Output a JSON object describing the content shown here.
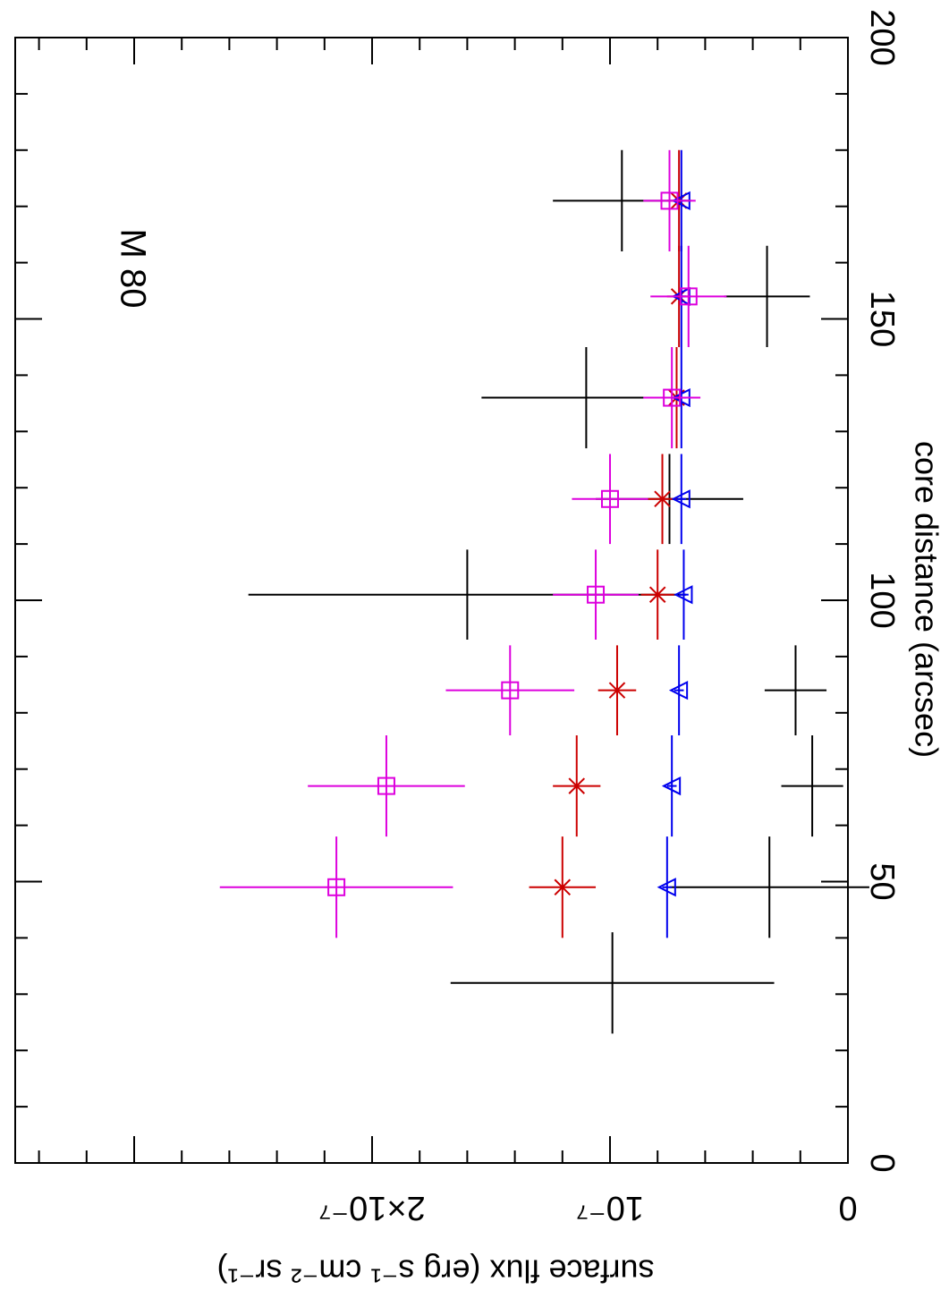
{
  "chart_data": {
    "type": "scatter",
    "orientation": "rotated-90-clockwise",
    "annotation": "M 80",
    "xlabel": "core distance (arcsec)",
    "ylabel": "surface flux (erg s⁻¹ cm⁻² sr⁻¹)",
    "xlim": [
      0,
      200
    ],
    "ylim": [
      0,
      3.5e-07
    ],
    "x_ticks": [
      0,
      50,
      100,
      150,
      200
    ],
    "x_tick_labels": [
      "0",
      "50",
      "100",
      "150",
      "200"
    ],
    "y_ticks": [
      0,
      1e-07,
      2e-07
    ],
    "y_tick_labels": [
      "0",
      "10⁻⁷",
      "2×10⁻⁷"
    ],
    "series": [
      {
        "name": "black",
        "color": "#000000",
        "marker": "none",
        "points": [
          {
            "x": 32,
            "xerr": 9,
            "y": 9.9e-08,
            "yerr": 6.8e-08
          },
          {
            "x": 49,
            "xerr": 9,
            "y": 3.3e-08,
            "yerr": 4.2e-08
          },
          {
            "x": 67,
            "xerr": 9,
            "y": 1.5e-08,
            "yerr": 1.3e-08
          },
          {
            "x": 84,
            "xerr": 8,
            "y": 2.2e-08,
            "yerr": 1.3e-08
          },
          {
            "x": 101,
            "xerr": 8,
            "y": 1.6e-07,
            "yerr": 9.2e-08
          },
          {
            "x": 118,
            "xerr": 8,
            "y": 7.5e-08,
            "yerr": 3.1e-08
          },
          {
            "x": 136,
            "xerr": 9,
            "y": 1.1e-07,
            "yerr": 4.4e-08
          },
          {
            "x": 154,
            "xerr": 9,
            "y": 3.4e-08,
            "yerr": 1.8e-08
          },
          {
            "x": 171,
            "xerr": 9,
            "y": 9.5e-08,
            "yerr": 2.9e-08
          }
        ]
      },
      {
        "name": "red",
        "color": "#cc0000",
        "marker": "star",
        "points": [
          {
            "x": 49,
            "xerr": 9,
            "y": 1.2e-07,
            "yerr": 1.4e-08
          },
          {
            "x": 67,
            "xerr": 9,
            "y": 1.14e-07,
            "yerr": 1e-08
          },
          {
            "x": 84,
            "xerr": 8,
            "y": 9.7e-08,
            "yerr": 8e-09
          },
          {
            "x": 101,
            "xerr": 8,
            "y": 8e-08,
            "yerr": 7e-09
          },
          {
            "x": 118,
            "xerr": 8,
            "y": 7.8e-08,
            "yerr": 6e-09
          },
          {
            "x": 136,
            "xerr": 9,
            "y": 7.2e-08,
            "yerr": 5e-09
          },
          {
            "x": 154,
            "xerr": 9,
            "y": 7.1e-08,
            "yerr": 5e-09
          },
          {
            "x": 171,
            "xerr": 9,
            "y": 7.1e-08,
            "yerr": 5e-09
          }
        ]
      },
      {
        "name": "blue",
        "color": "#0000ee",
        "marker": "triangle",
        "points": [
          {
            "x": 49,
            "xerr": 9,
            "y": 7.6e-08,
            "yerr": 2e-09
          },
          {
            "x": 67,
            "xerr": 9,
            "y": 7.4e-08,
            "yerr": 2e-09
          },
          {
            "x": 84,
            "xerr": 8,
            "y": 7.1e-08,
            "yerr": 2e-09
          },
          {
            "x": 101,
            "xerr": 8,
            "y": 6.9e-08,
            "yerr": 2e-09
          },
          {
            "x": 118,
            "xerr": 8,
            "y": 7e-08,
            "yerr": 2e-09
          },
          {
            "x": 136,
            "xerr": 9,
            "y": 7e-08,
            "yerr": 2e-09
          },
          {
            "x": 154,
            "xerr": 9,
            "y": 7e-08,
            "yerr": 2e-09
          },
          {
            "x": 171,
            "xerr": 9,
            "y": 7e-08,
            "yerr": 2e-09
          }
        ]
      },
      {
        "name": "magenta",
        "color": "#dd00dd",
        "marker": "square",
        "points": [
          {
            "x": 49,
            "xerr": 9,
            "y": 2.15e-07,
            "yerr": 4.9e-08
          },
          {
            "x": 67,
            "xerr": 9,
            "y": 1.94e-07,
            "yerr": 3.3e-08
          },
          {
            "x": 84,
            "xerr": 8,
            "y": 1.42e-07,
            "yerr": 2.7e-08
          },
          {
            "x": 101,
            "xerr": 8,
            "y": 1.06e-07,
            "yerr": 1.8e-08
          },
          {
            "x": 118,
            "xerr": 8,
            "y": 1e-07,
            "yerr": 1.6e-08
          },
          {
            "x": 136,
            "xerr": 9,
            "y": 7.4e-08,
            "yerr": 1.2e-08
          },
          {
            "x": 154,
            "xerr": 9,
            "y": 6.7e-08,
            "yerr": 1.6e-08
          },
          {
            "x": 171,
            "xerr": 9,
            "y": 7.5e-08,
            "yerr": 1.1e-08
          }
        ]
      }
    ]
  }
}
